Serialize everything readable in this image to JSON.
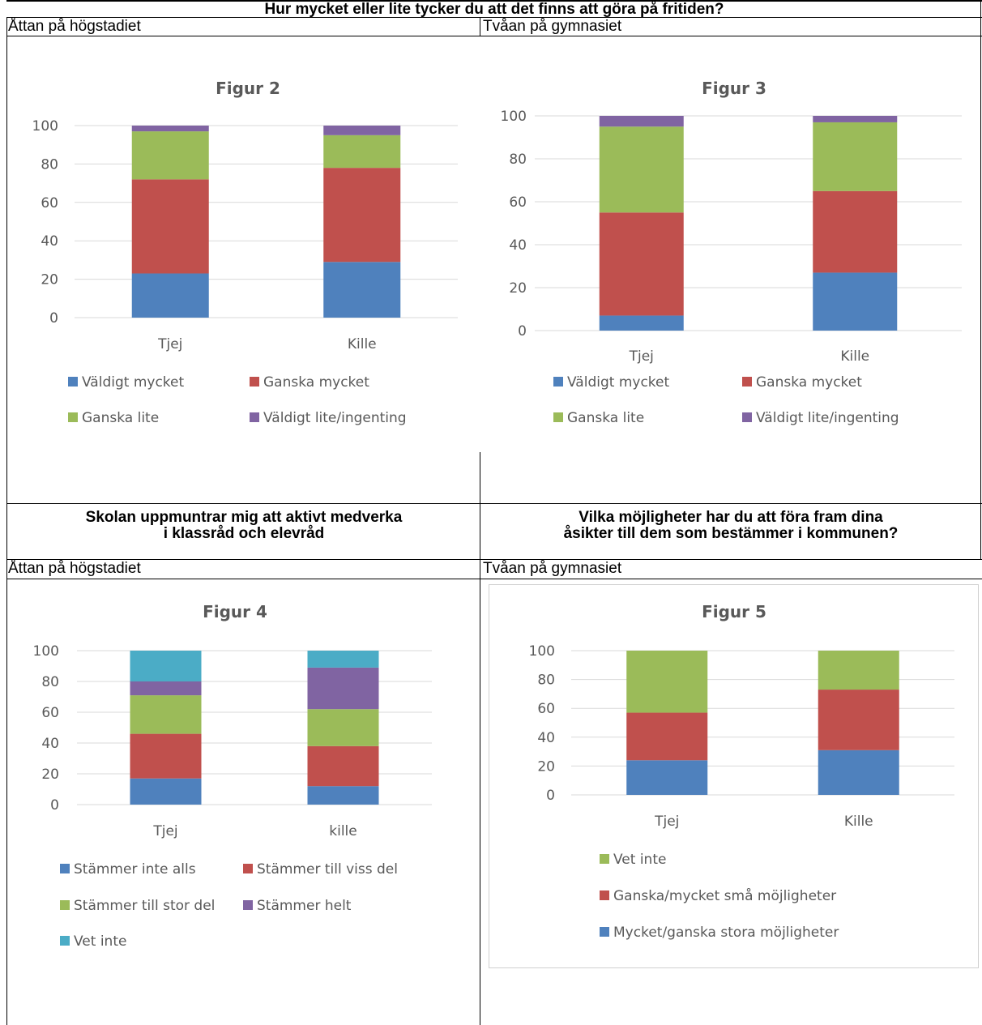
{
  "top_header": "Hur mycket eller lite tycker du att det finns att göra på fritiden?",
  "bottom_left_header": [
    "Skolan uppmuntrar mig att aktivt medverka",
    "i klassråd och elevråd"
  ],
  "bottom_right_header": [
    "Vilka möjligheter har du att föra fram dina",
    "åsikter till dem som bestämmer i kommunen?"
  ],
  "sub_left_top": "Åttan på högstadiet",
  "sub_right_top": "Tvåan på gymnasiet",
  "sub_left_bottom": "Åttan på högstadiet",
  "sub_right_bottom": "Tvåan på gymnasiet",
  "colors": {
    "blue": "#4f81bd",
    "red": "#c0504d",
    "green": "#9bbb59",
    "purple": "#8064a2",
    "teal": "#4bacc6",
    "grid": "#d9d9d9",
    "axis_text": "#595959"
  },
  "chart_data": [
    {
      "type": "bar",
      "stacked": true,
      "title": "Figur 2",
      "categories": [
        "Tjej",
        "Kille"
      ],
      "ylim": [
        0,
        100
      ],
      "yticks": [
        0,
        20,
        40,
        60,
        80,
        100
      ],
      "grid": true,
      "legend_position": "bottom",
      "series": [
        {
          "name": "Väldigt mycket",
          "color": "#4f81bd",
          "values": [
            23,
            29
          ]
        },
        {
          "name": "Ganska mycket",
          "color": "#c0504d",
          "values": [
            49,
            49
          ]
        },
        {
          "name": "Ganska lite",
          "color": "#9bbb59",
          "values": [
            25,
            17
          ]
        },
        {
          "name": "Väldigt lite/ingenting",
          "color": "#8064a2",
          "values": [
            3,
            5
          ]
        }
      ]
    },
    {
      "type": "bar",
      "stacked": true,
      "title": "Figur 3",
      "categories": [
        "Tjej",
        "Kille"
      ],
      "ylim": [
        0,
        100
      ],
      "yticks": [
        0,
        20,
        40,
        60,
        80,
        100
      ],
      "grid": true,
      "legend_position": "bottom",
      "series": [
        {
          "name": "Väldigt mycket",
          "color": "#4f81bd",
          "values": [
            7,
            27
          ]
        },
        {
          "name": "Ganska mycket",
          "color": "#c0504d",
          "values": [
            48,
            38
          ]
        },
        {
          "name": "Ganska lite",
          "color": "#9bbb59",
          "values": [
            40,
            32
          ]
        },
        {
          "name": "Väldigt lite/ingenting",
          "color": "#8064a2",
          "values": [
            5,
            3
          ]
        }
      ]
    },
    {
      "type": "bar",
      "stacked": true,
      "title": "Figur 4",
      "categories": [
        "Tjej",
        "kille"
      ],
      "ylim": [
        0,
        100
      ],
      "yticks": [
        0,
        20,
        40,
        60,
        80,
        100
      ],
      "grid": true,
      "legend_position": "bottom",
      "series": [
        {
          "name": "Stämmer inte alls",
          "color": "#4f81bd",
          "values": [
            17,
            12
          ]
        },
        {
          "name": "Stämmer till viss del",
          "color": "#c0504d",
          "values": [
            29,
            26
          ]
        },
        {
          "name": "Stämmer till stor del",
          "color": "#9bbb59",
          "values": [
            25,
            24
          ]
        },
        {
          "name": "Stämmer helt",
          "color": "#8064a2",
          "values": [
            9,
            27
          ]
        },
        {
          "name": "Vet inte",
          "color": "#4bacc6",
          "values": [
            20,
            11
          ]
        }
      ]
    },
    {
      "type": "bar",
      "stacked": true,
      "title": "Figur 5",
      "categories": [
        "Tjej",
        "Kille"
      ],
      "ylim": [
        0,
        100
      ],
      "yticks": [
        0,
        20,
        40,
        60,
        80,
        100
      ],
      "grid": true,
      "legend_position": "bottom",
      "series": [
        {
          "name": "Mycket/ganska stora möjligheter",
          "color": "#4f81bd",
          "values": [
            24,
            31
          ]
        },
        {
          "name": "Ganska/mycket små möjligheter",
          "color": "#c0504d",
          "values": [
            33,
            42
          ]
        },
        {
          "name": "Vet inte",
          "color": "#9bbb59",
          "values": [
            43,
            27
          ]
        }
      ]
    }
  ]
}
